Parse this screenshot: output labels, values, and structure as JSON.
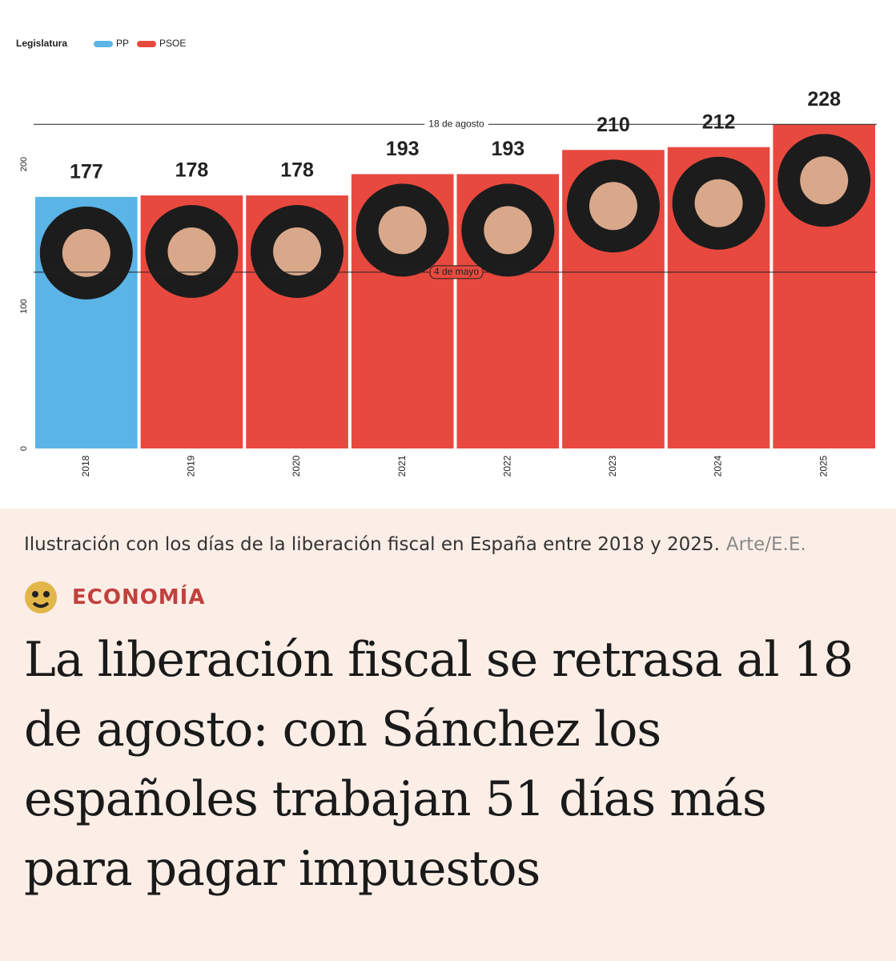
{
  "chart_data": {
    "type": "bar",
    "legend_title": "Legislatura",
    "categories": [
      "2018",
      "2019",
      "2020",
      "2021",
      "2022",
      "2023",
      "2024",
      "2025"
    ],
    "series": [
      {
        "name": "PP",
        "color": "#5ab4e6",
        "values": [
          177,
          null,
          null,
          null,
          null,
          null,
          null,
          null
        ]
      },
      {
        "name": "PSOE",
        "color": "#e8493f",
        "values": [
          null,
          178,
          178,
          193,
          193,
          210,
          212,
          228
        ]
      }
    ],
    "ylim": [
      0,
      260
    ],
    "yticks": [
      0,
      100,
      200
    ],
    "reference_lines": [
      {
        "label": "18 de agosto",
        "value": 228
      },
      {
        "label": "4 de mayo",
        "value": 124
      }
    ]
  },
  "caption": {
    "text": "Ilustración con los días de la liberación fiscal en España entre 2018 y 2025.",
    "credit": "Arte/E.E."
  },
  "section": "ECONOMÍA",
  "headline": "La liberación fiscal se retrasa al 18 de agosto: con Sánchez los españoles trabajan 51 días más para pagar impuestos"
}
